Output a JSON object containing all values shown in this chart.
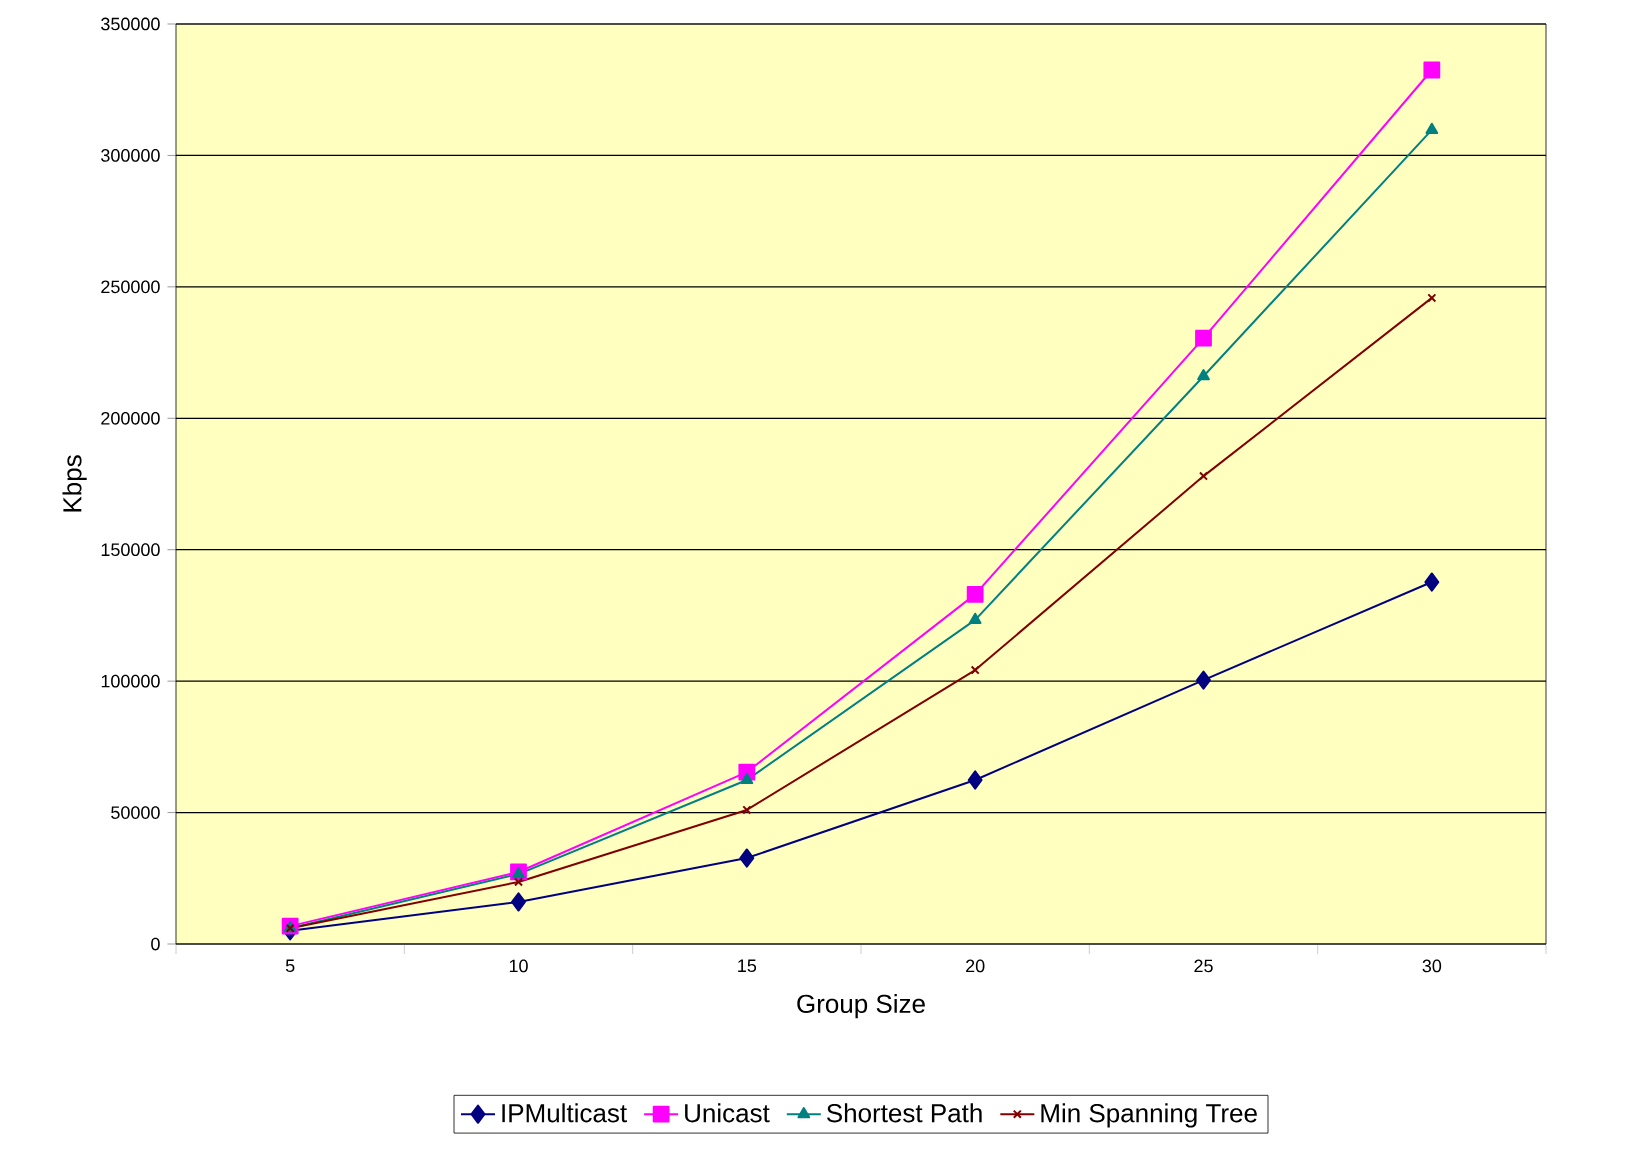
{
  "chart_data": {
    "type": "line",
    "xlabel": "Group Size",
    "ylabel": "Kbps",
    "categories": [
      "5",
      "10",
      "15",
      "20",
      "25",
      "30"
    ],
    "series": [
      {
        "name": "IPMulticast",
        "color": "#000080",
        "marker": "diamond",
        "values": [
          5000,
          16000,
          32700,
          62400,
          100400,
          137700
        ]
      },
      {
        "name": "Unicast",
        "color": "#ff00ff",
        "marker": "square",
        "values": [
          6800,
          27400,
          65400,
          133000,
          230500,
          332500
        ]
      },
      {
        "name": "Shortest Path",
        "color": "#008080",
        "marker": "triangle",
        "values": [
          6000,
          26600,
          62400,
          123300,
          216000,
          309700
        ]
      },
      {
        "name": "Min Spanning Tree",
        "color": "#800000",
        "marker": "cross",
        "values": [
          6000,
          23600,
          51000,
          104200,
          178000,
          245800
        ]
      }
    ],
    "ylim": [
      0,
      350000
    ],
    "yticks": [
      0,
      50000,
      100000,
      150000,
      200000,
      250000,
      300000,
      350000
    ],
    "grid": "y",
    "legend": "bottom",
    "line_style": "solid"
  }
}
